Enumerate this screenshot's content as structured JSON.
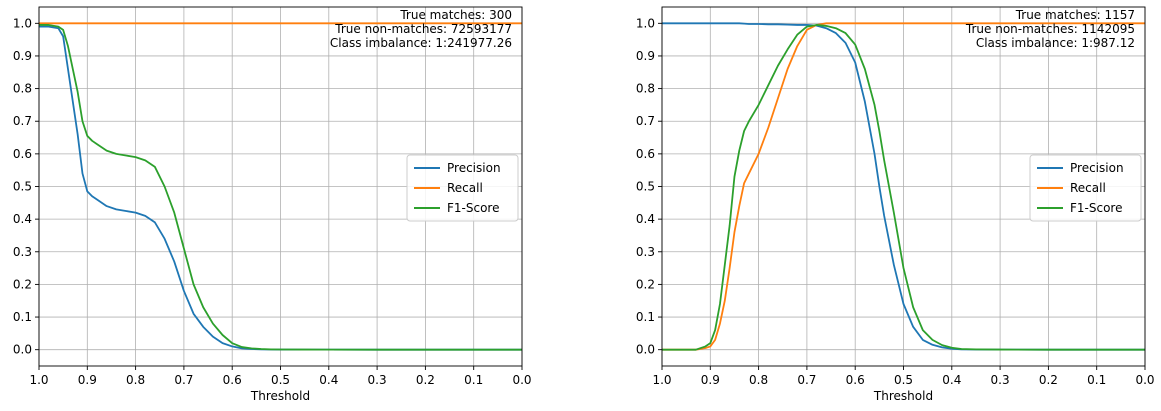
{
  "colors": {
    "precision": "#1f77b4",
    "recall": "#ff7f0e",
    "f1": "#2ca02c",
    "grid": "#b0b0b0"
  },
  "chart_data": [
    {
      "type": "line",
      "title": "",
      "xlabel": "Threshold",
      "ylabel": "",
      "xlim": [
        1.0,
        0.0
      ],
      "ylim": [
        -0.05,
        1.05
      ],
      "x_reversed": true,
      "grid": true,
      "legend_position": "center-right",
      "xticks": [
        "1.0",
        "0.9",
        "0.8",
        "0.7",
        "0.6",
        "0.5",
        "0.4",
        "0.3",
        "0.2",
        "0.1",
        "0.0"
      ],
      "yticks": [
        "0.0",
        "0.1",
        "0.2",
        "0.3",
        "0.4",
        "0.5",
        "0.6",
        "0.7",
        "0.8",
        "0.9",
        "1.0"
      ],
      "annotation": [
        "True matches: 300",
        "True non-matches: 72593177",
        "Class imbalance: 1:241977.26"
      ],
      "x": [
        1.0,
        0.98,
        0.96,
        0.95,
        0.94,
        0.93,
        0.92,
        0.91,
        0.9,
        0.89,
        0.88,
        0.86,
        0.84,
        0.82,
        0.8,
        0.78,
        0.76,
        0.74,
        0.72,
        0.7,
        0.68,
        0.66,
        0.64,
        0.62,
        0.6,
        0.58,
        0.56,
        0.54,
        0.52,
        0.5,
        0.45,
        0.4,
        0.3,
        0.2,
        0.1,
        0.0
      ],
      "series": [
        {
          "name": "Precision",
          "values": [
            0.99,
            0.99,
            0.985,
            0.96,
            0.86,
            0.76,
            0.66,
            0.54,
            0.485,
            0.47,
            0.46,
            0.44,
            0.43,
            0.425,
            0.42,
            0.41,
            0.39,
            0.34,
            0.27,
            0.18,
            0.11,
            0.07,
            0.04,
            0.02,
            0.01,
            0.004,
            0.002,
            0.001,
            0.0005,
            0.0003,
            0.0002,
            0.0001,
            0.0,
            0.0,
            0.0,
            0.0
          ]
        },
        {
          "name": "Recall",
          "values": [
            1.0,
            1.0,
            1.0,
            1.0,
            1.0,
            1.0,
            1.0,
            1.0,
            1.0,
            1.0,
            1.0,
            1.0,
            1.0,
            1.0,
            1.0,
            1.0,
            1.0,
            1.0,
            1.0,
            1.0,
            1.0,
            1.0,
            1.0,
            1.0,
            1.0,
            1.0,
            1.0,
            1.0,
            1.0,
            1.0,
            1.0,
            1.0,
            1.0,
            1.0,
            1.0,
            1.0
          ]
        },
        {
          "name": "F1-Score",
          "values": [
            0.995,
            0.995,
            0.99,
            0.98,
            0.93,
            0.86,
            0.79,
            0.7,
            0.655,
            0.64,
            0.63,
            0.61,
            0.6,
            0.595,
            0.59,
            0.58,
            0.56,
            0.5,
            0.42,
            0.31,
            0.2,
            0.13,
            0.08,
            0.045,
            0.02,
            0.008,
            0.004,
            0.002,
            0.001,
            0.0006,
            0.0003,
            0.0002,
            0.0,
            0.0,
            0.0,
            0.0
          ]
        }
      ]
    },
    {
      "type": "line",
      "title": "",
      "xlabel": "Threshold",
      "ylabel": "",
      "xlim": [
        1.0,
        0.0
      ],
      "ylim": [
        -0.05,
        1.05
      ],
      "x_reversed": true,
      "grid": true,
      "legend_position": "center-right",
      "xticks": [
        "1.0",
        "0.9",
        "0.8",
        "0.7",
        "0.6",
        "0.5",
        "0.4",
        "0.3",
        "0.2",
        "0.1",
        "0.0"
      ],
      "yticks": [
        "0.0",
        "0.1",
        "0.2",
        "0.3",
        "0.4",
        "0.5",
        "0.6",
        "0.7",
        "0.8",
        "0.9",
        "1.0"
      ],
      "annotation": [
        "True matches: 1157",
        "True non-matches: 1142095",
        "Class imbalance: 1:987.12"
      ],
      "x": [
        1.0,
        0.95,
        0.93,
        0.91,
        0.9,
        0.89,
        0.88,
        0.87,
        0.86,
        0.85,
        0.84,
        0.83,
        0.82,
        0.8,
        0.78,
        0.76,
        0.74,
        0.72,
        0.7,
        0.68,
        0.66,
        0.64,
        0.62,
        0.6,
        0.58,
        0.56,
        0.55,
        0.54,
        0.52,
        0.5,
        0.48,
        0.46,
        0.44,
        0.42,
        0.4,
        0.38,
        0.35,
        0.3,
        0.2,
        0.1,
        0.0
      ],
      "series": [
        {
          "name": "Precision",
          "values": [
            1.0,
            1.0,
            1.0,
            1.0,
            1.0,
            1.0,
            1.0,
            1.0,
            1.0,
            1.0,
            1.0,
            0.999,
            0.998,
            0.998,
            0.997,
            0.997,
            0.996,
            0.995,
            0.995,
            0.993,
            0.985,
            0.97,
            0.94,
            0.88,
            0.76,
            0.6,
            0.5,
            0.41,
            0.26,
            0.14,
            0.07,
            0.03,
            0.015,
            0.007,
            0.003,
            0.001,
            0.0005,
            0.0002,
            0.0,
            0.0,
            0.0
          ]
        },
        {
          "name": "Recall",
          "values": [
            0.0,
            0.0,
            0.0,
            0.005,
            0.01,
            0.03,
            0.08,
            0.15,
            0.25,
            0.36,
            0.44,
            0.51,
            0.54,
            0.6,
            0.68,
            0.77,
            0.86,
            0.93,
            0.98,
            0.995,
            1.0,
            1.0,
            1.0,
            1.0,
            1.0,
            1.0,
            1.0,
            1.0,
            1.0,
            1.0,
            1.0,
            1.0,
            1.0,
            1.0,
            1.0,
            1.0,
            1.0,
            1.0,
            1.0,
            1.0,
            1.0
          ]
        },
        {
          "name": "F1-Score",
          "values": [
            0.0,
            0.0,
            0.0,
            0.01,
            0.02,
            0.06,
            0.14,
            0.26,
            0.38,
            0.53,
            0.61,
            0.67,
            0.7,
            0.75,
            0.81,
            0.87,
            0.92,
            0.965,
            0.99,
            0.995,
            0.992,
            0.985,
            0.97,
            0.935,
            0.86,
            0.75,
            0.67,
            0.58,
            0.42,
            0.25,
            0.13,
            0.06,
            0.03,
            0.014,
            0.006,
            0.002,
            0.001,
            0.0004,
            0.0,
            0.0,
            0.0
          ]
        }
      ]
    }
  ]
}
